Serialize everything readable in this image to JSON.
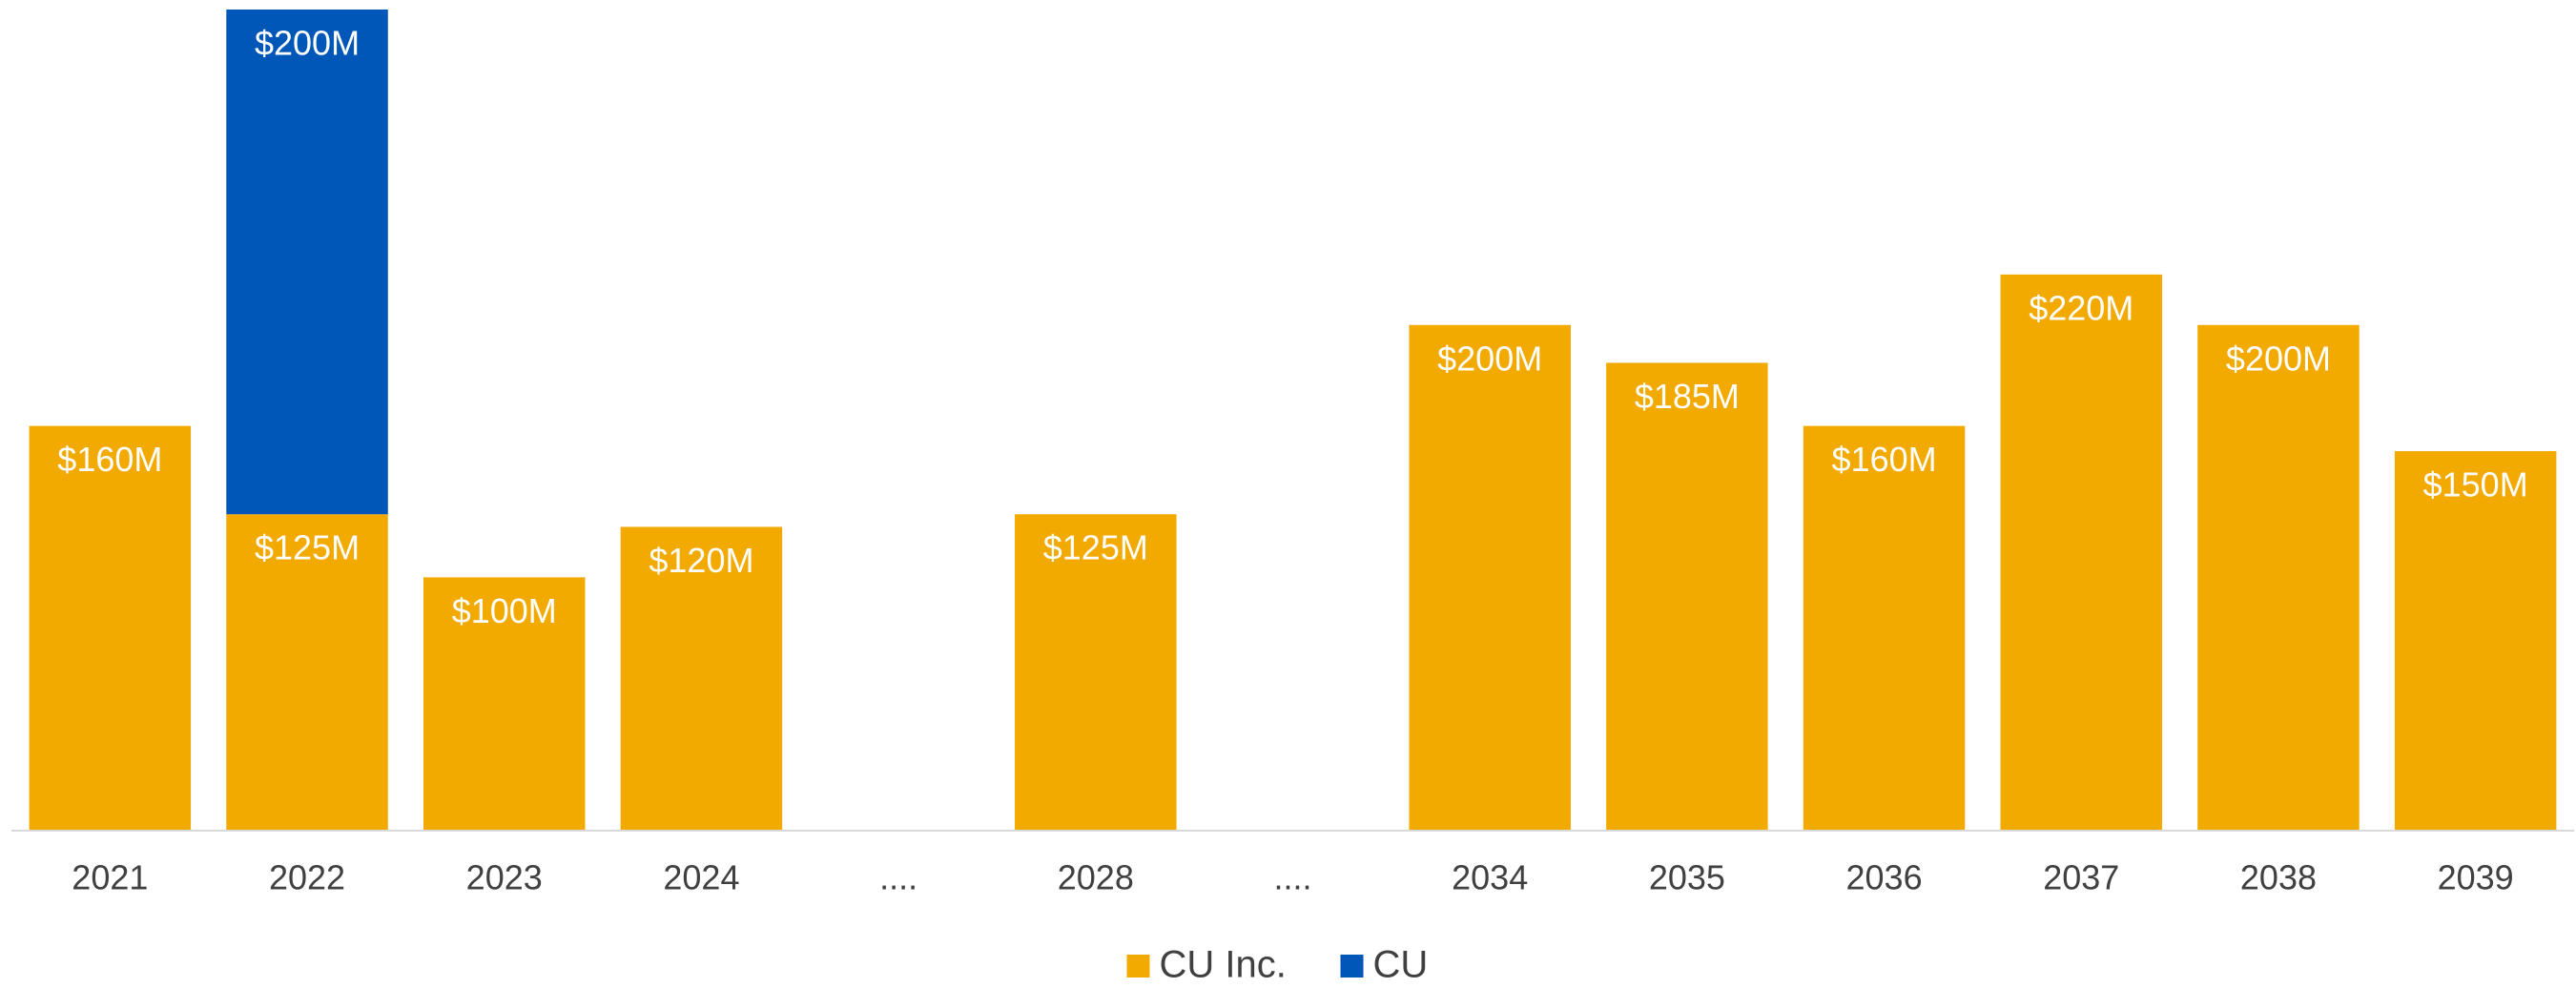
{
  "chart_data": {
    "type": "stacked_bar",
    "categories": [
      "2021",
      "2022",
      "2023",
      "2024",
      "....",
      "2028",
      "....",
      "2034",
      "2035",
      "2036",
      "2037",
      "2038",
      "2039"
    ],
    "series": [
      {
        "name": "CU Inc.",
        "color": "#f2a900",
        "values": [
          160,
          125,
          100,
          120,
          null,
          125,
          null,
          200,
          185,
          160,
          220,
          200,
          150
        ],
        "value_labels": [
          "$160M",
          "$125M",
          "$100M",
          "$120M",
          null,
          "$125M",
          null,
          "$200M",
          "$185M",
          "$160M",
          "$220M",
          "$200M",
          "$150M"
        ]
      },
      {
        "name": "CU",
        "color": "#0057b8",
        "values": [
          null,
          200,
          null,
          null,
          null,
          null,
          null,
          null,
          null,
          null,
          null,
          null,
          null
        ],
        "value_labels": [
          null,
          "$200M",
          null,
          null,
          null,
          null,
          null,
          null,
          null,
          null,
          null,
          null,
          null
        ]
      }
    ],
    "legend": "bottom"
  }
}
